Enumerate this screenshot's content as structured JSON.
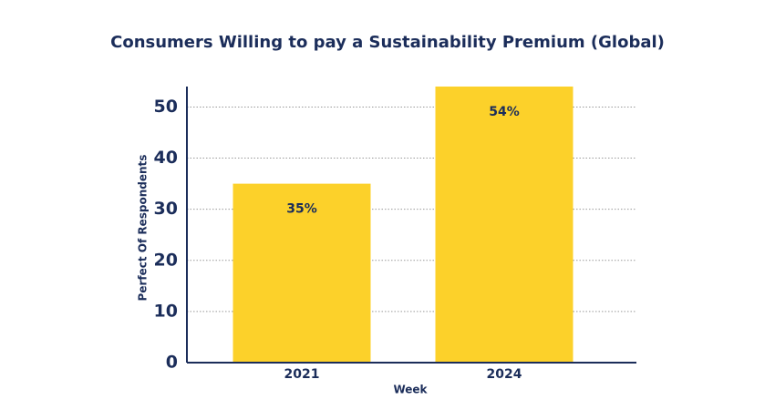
{
  "chart_data": {
    "type": "bar",
    "title": "Consumers Willing to pay a Sustainability Premium (Global)",
    "x_label": "Week",
    "y_label": "Perfect Of Respondents",
    "categories": [
      "2021",
      "2024"
    ],
    "values": [
      35,
      54
    ],
    "value_labels": [
      "35%",
      "54%"
    ],
    "color": "#fcd12a",
    "ylim": [
      0,
      54
    ],
    "yticks": [
      0,
      10,
      20,
      30,
      40,
      50
    ],
    "grid": true
  }
}
